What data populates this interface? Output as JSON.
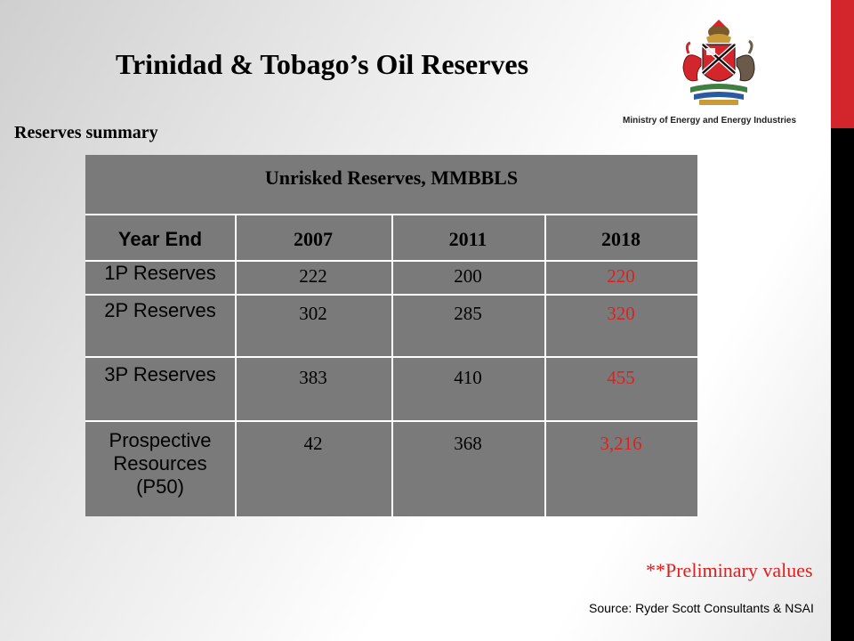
{
  "slide": {
    "title": "Trinidad & Tobago’s Oil Reserves",
    "subtitle": "Reserves summary",
    "ministry": "Ministry of Energy and Energy Industries",
    "preliminary_note": "**Preliminary values",
    "source": "Source: Ryder Scott Consultants & NSAI"
  },
  "table": {
    "caption": "Unrisked Reserves, MMBBLS",
    "header": [
      "Year End",
      "2007",
      "2011",
      "2018"
    ],
    "rows": [
      [
        "1P Reserves",
        "222",
        "200",
        "220"
      ],
      [
        "2P Reserves",
        "302",
        "285",
        "320"
      ],
      [
        "3P Reserves",
        "383",
        "410",
        "455"
      ],
      [
        "Prospective Resources (P50)",
        "42",
        "368",
        "3,216"
      ]
    ]
  },
  "colors": {
    "accent_red": "#d3262c",
    "highlight_values": "#e0201e",
    "table_fill": "#7a7a7a"
  },
  "icons": [
    "coat-of-arms-emblem"
  ]
}
